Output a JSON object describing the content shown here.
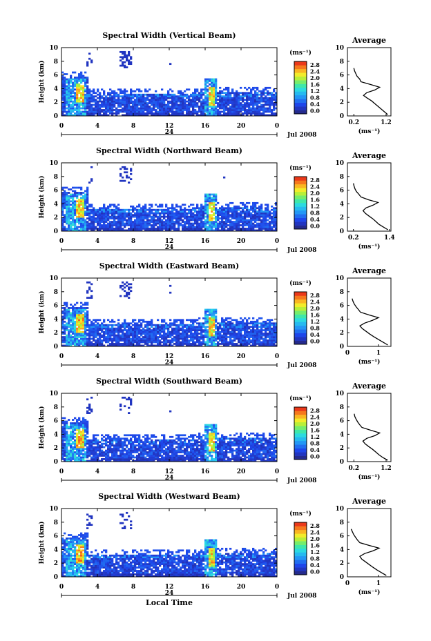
{
  "figure": {
    "xlabel": "Local Time",
    "date_label": "Jul 2008",
    "midnight_label": "24"
  },
  "chart_data": [
    {
      "type": "heatmap",
      "title": "Spectral Width (Vertical Beam)",
      "xlabel": "Local Time",
      "ylabel": "Height (km)",
      "xticks": [
        "0",
        "4",
        "8",
        "12",
        "16",
        "20",
        "0"
      ],
      "yticks": [
        "0",
        "2",
        "4",
        "6",
        "8",
        "10"
      ],
      "ylim": [
        0,
        10
      ],
      "colorbar": {
        "label": "(ms⁻¹)",
        "ticks": [
          "2.8",
          "2.4",
          "2.0",
          "1.6",
          "1.2",
          "0.8",
          "0.4",
          "0.0"
        ],
        "range": [
          0,
          2.8
        ]
      },
      "profile": {
        "title": "Average",
        "xlabel": "(ms⁻¹)",
        "xticks": [
          "0.2",
          "1.2"
        ],
        "xlim": [
          0.0,
          1.35
        ],
        "yticks": [
          "0",
          "2",
          "4",
          "6",
          "8",
          "10"
        ],
        "ylim": [
          0,
          10
        ],
        "heights": [
          0.2,
          0.6,
          1.0,
          1.4,
          1.8,
          2.2,
          2.6,
          3.0,
          3.4,
          3.8,
          4.2,
          4.6,
          5.0,
          5.4,
          5.8,
          6.2,
          6.6,
          7.0
        ],
        "values": [
          1.25,
          1.15,
          1.05,
          0.95,
          0.85,
          0.75,
          0.62,
          0.5,
          0.6,
          0.85,
          1.0,
          0.72,
          0.42,
          0.38,
          0.3,
          0.26,
          0.22,
          0.2
        ]
      }
    },
    {
      "type": "heatmap",
      "title": "Spectral Width (Northward Beam)",
      "xlabel": "Local Time",
      "ylabel": "Height (km)",
      "xticks": [
        "0",
        "4",
        "8",
        "12",
        "16",
        "20",
        "0"
      ],
      "yticks": [
        "0",
        "2",
        "4",
        "6",
        "8",
        "10"
      ],
      "ylim": [
        0,
        10
      ],
      "colorbar": {
        "label": "(ms⁻¹)",
        "ticks": [
          "2.8",
          "2.4",
          "2.0",
          "1.6",
          "1.2",
          "0.8",
          "0.4",
          "0.0"
        ],
        "range": [
          0,
          2.8
        ]
      },
      "profile": {
        "title": "Average",
        "xlabel": "(ms⁻¹)",
        "xticks": [
          "0.2",
          "1.4"
        ],
        "xlim": [
          0.0,
          1.45
        ],
        "yticks": [
          "0",
          "2",
          "4",
          "6",
          "8",
          "10"
        ],
        "ylim": [
          0,
          10
        ],
        "heights": [
          0.2,
          0.6,
          1.0,
          1.4,
          1.8,
          2.2,
          2.6,
          3.0,
          3.4,
          3.8,
          4.2,
          4.6,
          5.0,
          5.4,
          5.8,
          6.2,
          6.6,
          7.0
        ],
        "values": [
          1.35,
          1.2,
          1.05,
          0.95,
          0.85,
          0.72,
          0.6,
          0.52,
          0.62,
          0.85,
          1.02,
          0.7,
          0.45,
          0.38,
          0.3,
          0.25,
          0.22,
          0.2
        ]
      }
    },
    {
      "type": "heatmap",
      "title": "Spectral Width (Eastward Beam)",
      "xlabel": "Local Time",
      "ylabel": "Height (km)",
      "xticks": [
        "0",
        "4",
        "8",
        "12",
        "16",
        "20",
        "0"
      ],
      "yticks": [
        "0",
        "2",
        "4",
        "6",
        "8",
        "10"
      ],
      "ylim": [
        0,
        10
      ],
      "colorbar": {
        "label": "(ms⁻¹)",
        "ticks": [
          "2.8",
          "2.4",
          "2.0",
          "1.6",
          "1.2",
          "0.8",
          "0.4",
          "0.0"
        ],
        "range": [
          0,
          2.8
        ]
      },
      "profile": {
        "title": "Average",
        "xlabel": "(ms⁻¹)",
        "xticks": [
          "0",
          "1"
        ],
        "xlim": [
          0.0,
          1.4
        ],
        "yticks": [
          "0",
          "2",
          "4",
          "6",
          "8",
          "10"
        ],
        "ylim": [
          0,
          10
        ],
        "heights": [
          0.2,
          0.6,
          1.0,
          1.4,
          1.8,
          2.2,
          2.6,
          3.0,
          3.4,
          3.8,
          4.2,
          4.6,
          5.0,
          5.4,
          5.8,
          6.2,
          6.6,
          7.0
        ],
        "values": [
          1.3,
          1.15,
          1.0,
          0.85,
          0.72,
          0.6,
          0.48,
          0.4,
          0.55,
          0.8,
          1.0,
          0.7,
          0.42,
          0.35,
          0.28,
          0.22,
          0.18,
          0.15
        ]
      }
    },
    {
      "type": "heatmap",
      "title": "Spectral Width (Southward Beam)",
      "xlabel": "Local Time",
      "ylabel": "Height (km)",
      "xticks": [
        "0",
        "4",
        "8",
        "12",
        "16",
        "20",
        "0"
      ],
      "yticks": [
        "0",
        "2",
        "4",
        "6",
        "8",
        "10"
      ],
      "ylim": [
        0,
        10
      ],
      "colorbar": {
        "label": "(ms⁻¹)",
        "ticks": [
          "2.8",
          "2.4",
          "2.0",
          "1.6",
          "1.2",
          "0.8",
          "0.4",
          "0.0"
        ],
        "range": [
          0,
          2.8
        ]
      },
      "profile": {
        "title": "Average",
        "xlabel": "(ms⁻¹)",
        "xticks": [
          "0.2",
          "1.2"
        ],
        "xlim": [
          0.0,
          1.35
        ],
        "yticks": [
          "0",
          "2",
          "4",
          "6",
          "8",
          "10"
        ],
        "ylim": [
          0,
          10
        ],
        "heights": [
          0.2,
          0.6,
          1.0,
          1.4,
          1.8,
          2.2,
          2.6,
          3.0,
          3.4,
          3.8,
          4.2,
          4.6,
          5.0,
          5.4,
          5.8,
          6.2,
          6.6,
          7.0
        ],
        "values": [
          1.25,
          1.1,
          0.98,
          0.88,
          0.78,
          0.66,
          0.55,
          0.48,
          0.6,
          0.85,
          1.0,
          0.72,
          0.45,
          0.38,
          0.32,
          0.27,
          0.23,
          0.21
        ]
      }
    },
    {
      "type": "heatmap",
      "title": "Spectral Width (Westward Beam)",
      "xlabel": "Local Time",
      "ylabel": "Height (km)",
      "xticks": [
        "0",
        "4",
        "8",
        "12",
        "16",
        "20",
        "0"
      ],
      "yticks": [
        "0",
        "2",
        "4",
        "6",
        "8",
        "10"
      ],
      "ylim": [
        0,
        10
      ],
      "colorbar": {
        "label": "(ms⁻¹)",
        "ticks": [
          "2.8",
          "2.4",
          "2.0",
          "1.6",
          "1.2",
          "0.8",
          "0.4",
          "0.0"
        ],
        "range": [
          0,
          2.8
        ]
      },
      "profile": {
        "title": "Average",
        "xlabel": "(ms⁻¹)",
        "xticks": [
          "0",
          "1"
        ],
        "xlim": [
          0.0,
          1.4
        ],
        "yticks": [
          "0",
          "2",
          "4",
          "6",
          "8",
          "10"
        ],
        "ylim": [
          0,
          10
        ],
        "heights": [
          0.2,
          0.6,
          1.0,
          1.4,
          1.8,
          2.2,
          2.6,
          3.0,
          3.4,
          3.8,
          4.2,
          4.6,
          5.0,
          5.4,
          5.8,
          6.2,
          6.6,
          7.0
        ],
        "values": [
          1.25,
          1.1,
          0.95,
          0.82,
          0.7,
          0.58,
          0.46,
          0.4,
          0.55,
          0.82,
          1.02,
          0.7,
          0.4,
          0.32,
          0.26,
          0.2,
          0.16,
          0.12
        ]
      }
    }
  ]
}
